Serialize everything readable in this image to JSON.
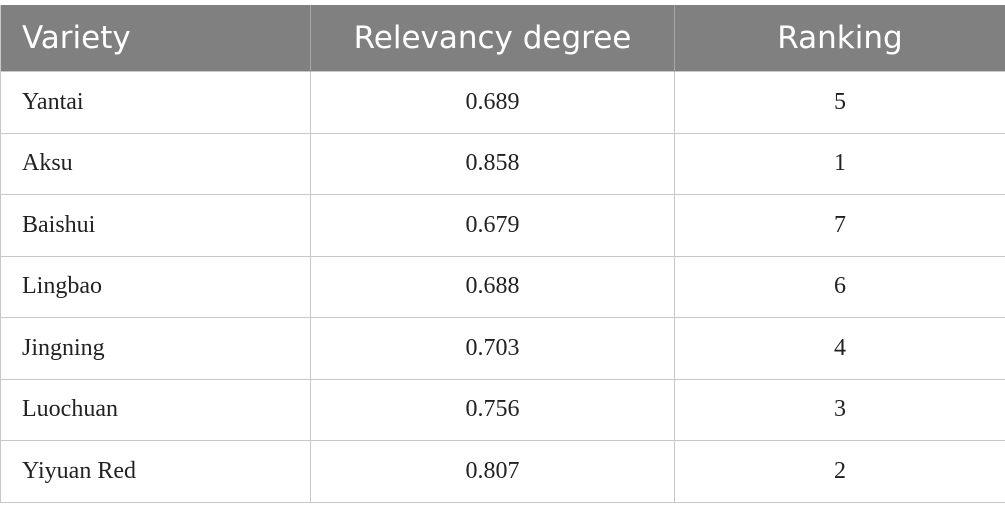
{
  "table": {
    "header": [
      "Variety",
      "Relevancy degree",
      "Ranking"
    ],
    "rows": [
      [
        "Yantai",
        0.689,
        5
      ],
      [
        "Aksu",
        0.858,
        1
      ],
      [
        "Baishui",
        0.679,
        7
      ],
      [
        "Lingbao",
        0.688,
        6
      ],
      [
        "Jingning",
        0.703,
        4
      ],
      [
        "Luochuan",
        0.756,
        3
      ],
      [
        "Yiyuan Red",
        0.807,
        2
      ]
    ]
  }
}
